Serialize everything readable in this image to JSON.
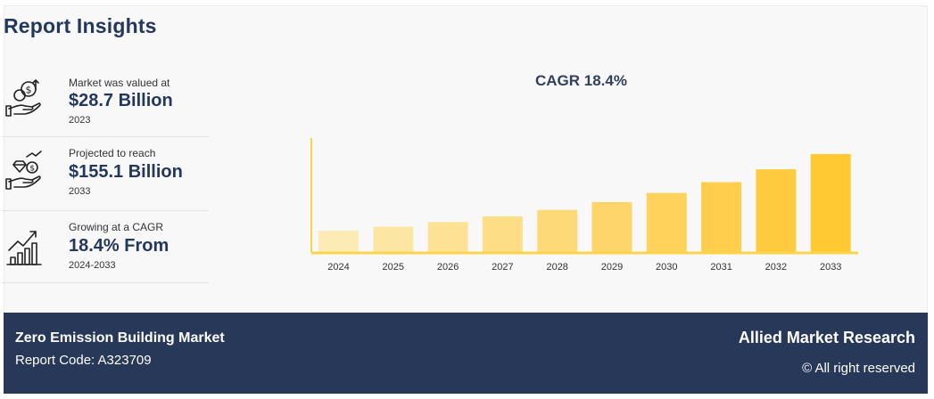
{
  "header": {
    "title": "Report Insights"
  },
  "stats": [
    {
      "label": "Market was valued at",
      "value": "$28.7 Billion",
      "year": "2023",
      "icon": "money-hand-icon"
    },
    {
      "label": "Projected to reach",
      "value": "$155.1 Billion",
      "year": "2033",
      "icon": "diamond-coin-hand-icon"
    },
    {
      "label": "Growing at a CAGR",
      "value": "18.4% From",
      "year": "2024-2033",
      "icon": "growth-chart-icon"
    }
  ],
  "chart_data": {
    "type": "bar",
    "title": "CAGR 18.4%",
    "categories": [
      "2024",
      "2025",
      "2026",
      "2027",
      "2028",
      "2029",
      "2030",
      "2031",
      "2032",
      "2033"
    ],
    "values": [
      34.0,
      40.2,
      47.6,
      56.4,
      66.7,
      79.0,
      93.5,
      110.7,
      131.0,
      155.1
    ],
    "xlabel": "",
    "ylabel": "",
    "grid": false,
    "colors": [
      "#fcebb4",
      "#fce6a4",
      "#fde296",
      "#fddd86",
      "#fdd978",
      "#fed56a",
      "#fed25b",
      "#ffce4c",
      "#ffcb3e",
      "#ffc933"
    ],
    "axis_color": "#fcd44b"
  },
  "footer": {
    "market": "Zero Emission Building Market",
    "report_code": "Report Code: A323709",
    "brand": "Allied Market Research",
    "rights": "© All right reserved"
  }
}
